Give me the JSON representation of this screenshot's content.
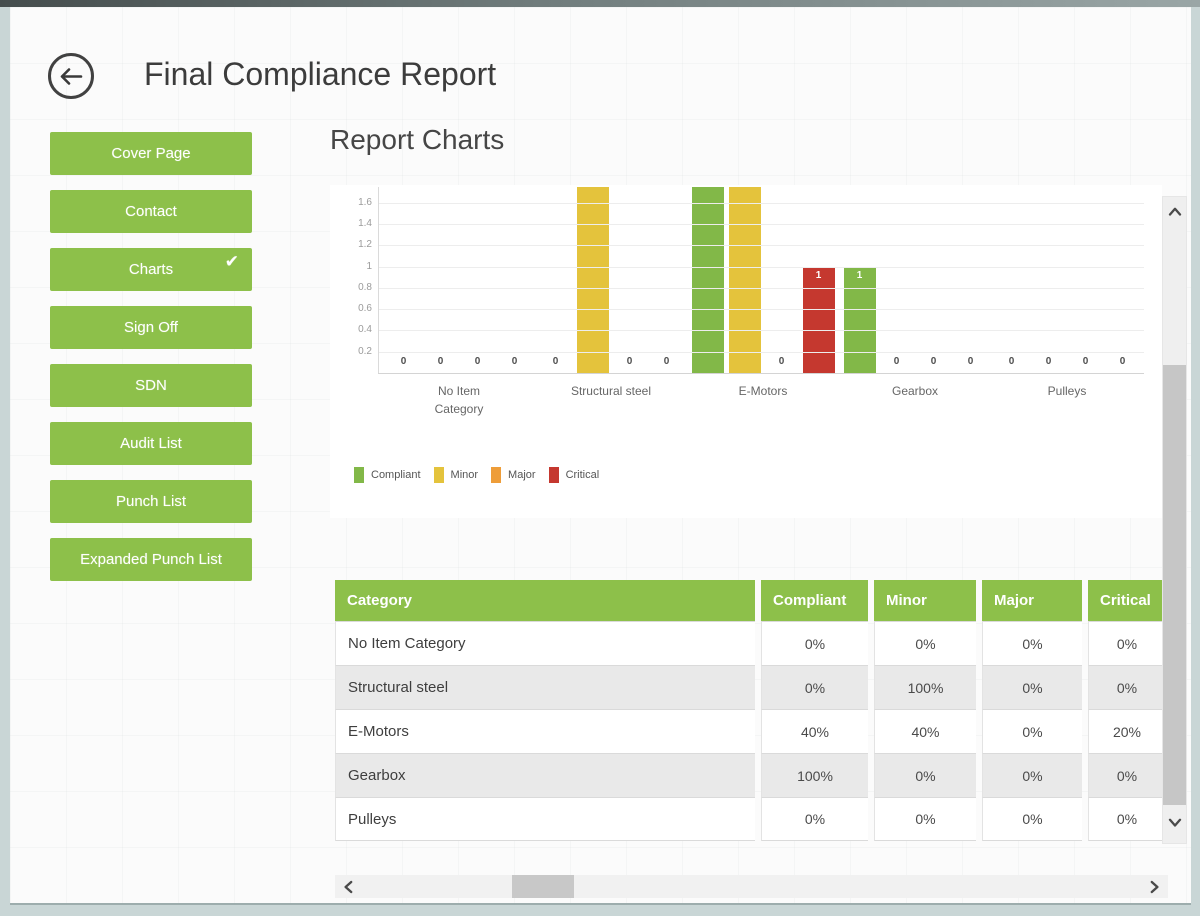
{
  "header": {
    "title": "Final Compliance Report"
  },
  "main": {
    "heading": "Report Charts"
  },
  "sidebar": {
    "items": [
      {
        "label": "Cover Page",
        "checked": false
      },
      {
        "label": "Contact",
        "checked": false
      },
      {
        "label": "Charts",
        "checked": true
      },
      {
        "label": "Sign Off",
        "checked": false
      },
      {
        "label": "SDN",
        "checked": false
      },
      {
        "label": "Audit List",
        "checked": false
      },
      {
        "label": "Punch List",
        "checked": false
      },
      {
        "label": "Expanded Punch List",
        "checked": false
      }
    ]
  },
  "icons": {
    "check": "✔"
  },
  "chart_data": {
    "type": "bar",
    "title": "",
    "xlabel": "",
    "ylabel": "",
    "categories": [
      "No Item Category",
      "Structural steel",
      "E-Motors",
      "Gearbox",
      "Pulleys"
    ],
    "series": [
      {
        "name": "Compliant",
        "color": "#82b848",
        "values": [
          0,
          0,
          2,
          1,
          0
        ]
      },
      {
        "name": "Minor",
        "color": "#e4c33c",
        "values": [
          0,
          2,
          2,
          0,
          0
        ]
      },
      {
        "name": "Major",
        "color": "#ee9d39",
        "values": [
          0,
          0,
          0,
          0,
          0
        ]
      },
      {
        "name": "Critical",
        "color": "#c5382f",
        "values": [
          0,
          0,
          1,
          0,
          0
        ]
      }
    ],
    "yticks": [
      0.2,
      0.4,
      0.6,
      0.8,
      1,
      1.2,
      1.4,
      1.6
    ],
    "ylim": [
      0,
      1.75
    ],
    "grid": true,
    "legend_position": "bottom",
    "bar_value_labels": true,
    "zero_value_label": "0"
  },
  "table": {
    "headers": [
      "Category",
      "Compliant",
      "Minor",
      "Major",
      "Critical"
    ],
    "rows": [
      {
        "cells": [
          "No Item Category",
          "0%",
          "0%",
          "0%",
          "0%"
        ]
      },
      {
        "cells": [
          "Structural steel",
          "0%",
          "100%",
          "0%",
          "0%"
        ]
      },
      {
        "cells": [
          "E-Motors",
          "40%",
          "40%",
          "0%",
          "20%"
        ]
      },
      {
        "cells": [
          "Gearbox",
          "100%",
          "0%",
          "0%",
          "0%"
        ]
      },
      {
        "cells": [
          "Pulleys",
          "0%",
          "0%",
          "0%",
          "0%"
        ]
      }
    ]
  },
  "colors": {
    "accent_green": "#8dc04a",
    "compliant": "#82b848",
    "minor": "#e4c33c",
    "major": "#ee9d39",
    "critical": "#c5382f",
    "alt_row": "#e9e9e9"
  }
}
